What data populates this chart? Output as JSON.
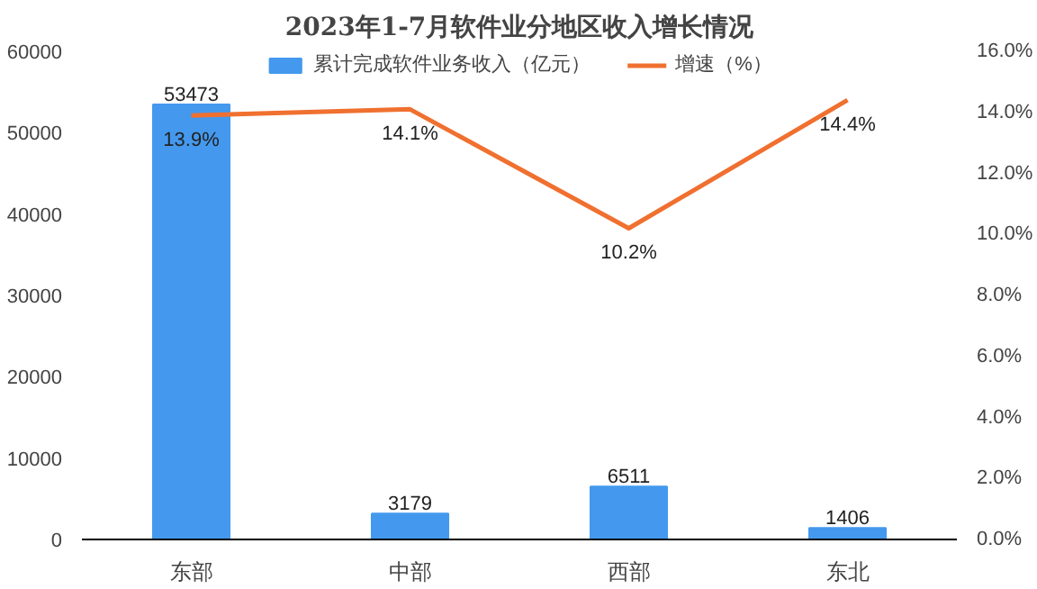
{
  "chart_data": {
    "type": "bar",
    "title": "2023年1-7月软件业分地区收入增长情况",
    "categories": [
      "东部",
      "中部",
      "西部",
      "东北"
    ],
    "series": [
      {
        "name": "累计完成软件业务收入（亿元）",
        "color": "#4499ee",
        "values": [
          53473,
          3179,
          6511,
          1406
        ],
        "value_labels": [
          "53473",
          "3179",
          "6511",
          "1406"
        ]
      },
      {
        "name": "增速（%）",
        "type": "line",
        "axis": "y2",
        "color": "#f07030",
        "values": [
          13.9,
          14.1,
          10.2,
          14.4
        ],
        "value_labels": [
          "13.9%",
          "14.1%",
          "10.2%",
          "14.4%"
        ]
      }
    ],
    "ylim": [
      0,
      60000
    ],
    "yticks": [
      0,
      10000,
      20000,
      30000,
      40000,
      50000,
      60000
    ],
    "y2lim": [
      0,
      16
    ],
    "y2ticks": [
      {
        "value": 0,
        "label": "0.0%"
      },
      {
        "value": 2,
        "label": "2.0%"
      },
      {
        "value": 4,
        "label": "4.0%"
      },
      {
        "value": 6,
        "label": "6.0%"
      },
      {
        "value": 8,
        "label": "8.0%"
      },
      {
        "value": 10,
        "label": "10.0%"
      },
      {
        "value": 12,
        "label": "12.0%"
      },
      {
        "value": 14,
        "label": "14.0%"
      },
      {
        "value": 16,
        "label": "16.0%"
      }
    ],
    "legend": "top",
    "grid": false,
    "marker": "none"
  }
}
